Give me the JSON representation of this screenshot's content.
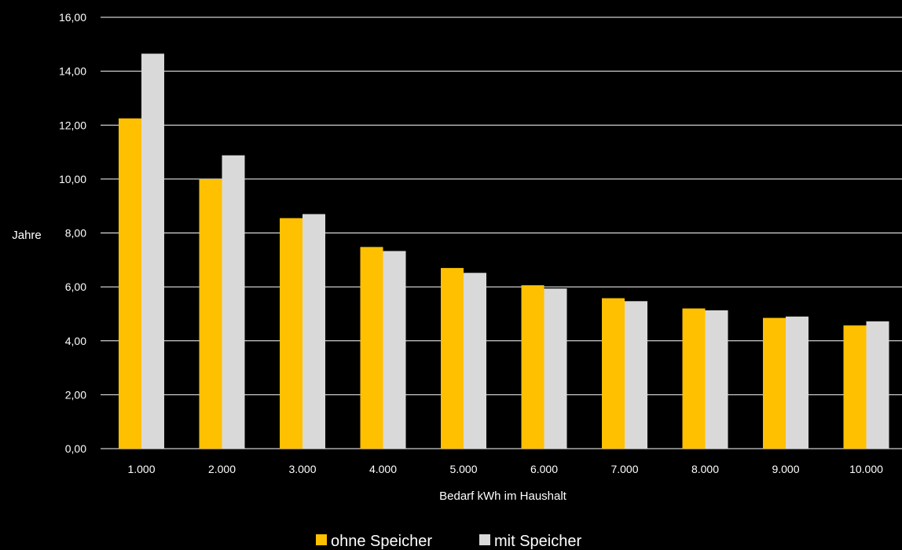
{
  "chart_data": {
    "type": "bar",
    "title": "",
    "xlabel": "Bedarf kWh im Haushalt",
    "ylabel": "Jahre",
    "categories": [
      "1.000",
      "2.000",
      "3.000",
      "4.000",
      "5.000",
      "6.000",
      "7.000",
      "8.000",
      "9.000",
      "10.000"
    ],
    "series": [
      {
        "name": "ohne Speicher",
        "color": "#FFC000",
        "values": [
          12.25,
          10.0,
          8.55,
          7.48,
          6.7,
          6.06,
          5.58,
          5.2,
          4.85,
          4.57
        ]
      },
      {
        "name": "mit Speicher",
        "color": "#D9D9D9",
        "values": [
          14.65,
          10.88,
          8.7,
          7.33,
          6.52,
          5.94,
          5.47,
          5.13,
          4.9,
          4.72
        ]
      }
    ],
    "ylim": [
      0,
      16
    ],
    "yticks": [
      "0,00",
      "2,00",
      "4,00",
      "6,00",
      "8,00",
      "10,00",
      "12,00",
      "14,00",
      "16,00"
    ],
    "grid": true,
    "gridline_color": "#FFFFFF",
    "background": "#000000",
    "legend_position": "bottom"
  }
}
